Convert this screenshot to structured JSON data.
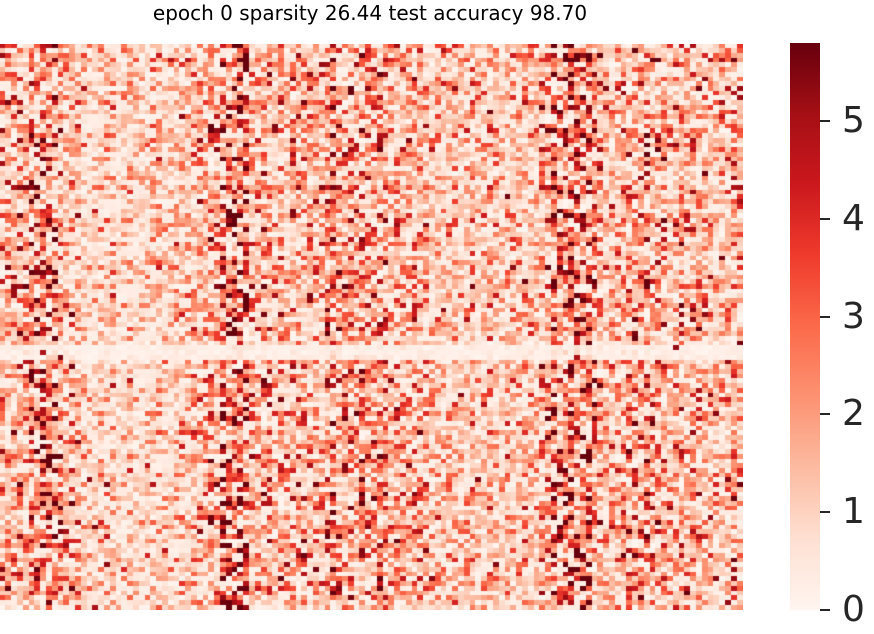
{
  "chart_data": {
    "type": "heatmap",
    "title": "epoch 0 sparsity 26.44 test accuracy 98.70",
    "colormap": "Reds",
    "colormap_stops": [
      "#fff5f0",
      "#fee0d2",
      "#fcbba1",
      "#fc9272",
      "#fb6a4a",
      "#ef3b2c",
      "#cb181d",
      "#a50f15",
      "#67000d"
    ],
    "value_range": [
      0,
      5.8
    ],
    "grid": {
      "rows": 120,
      "cols": 128
    },
    "notes": "Dense noisy heatmap of weight magnitudes; darker vertical bands near columns 6, 32, 50-62, 80-90; lighter horizontal band near row 65.",
    "colorbar": {
      "ticks": [
        0,
        1,
        2,
        3,
        4,
        5
      ],
      "tick_labels": [
        "0",
        "1",
        "2",
        "3",
        "4",
        "5"
      ]
    }
  }
}
